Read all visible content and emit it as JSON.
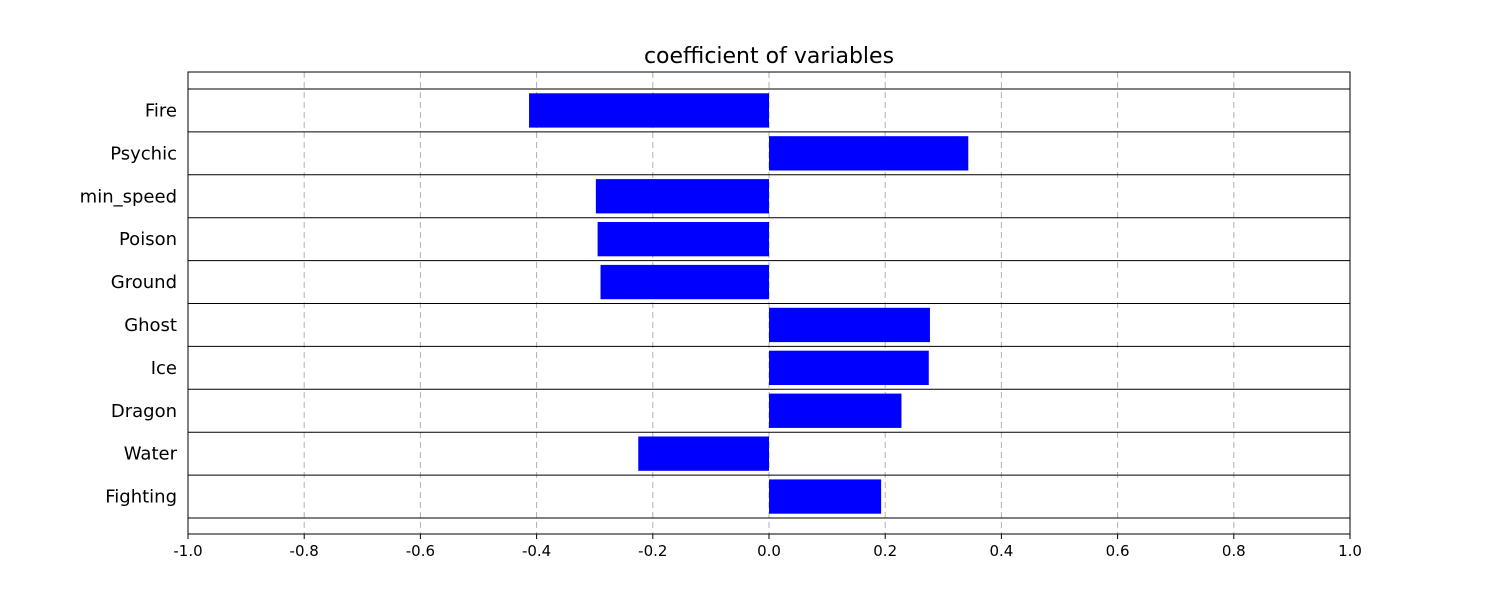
{
  "chart_data": {
    "type": "bar",
    "orientation": "horizontal",
    "title": "coefficient of variables",
    "xlabel": "",
    "ylabel": "",
    "xlim": [
      -1.0,
      1.0
    ],
    "grid": {
      "x": true,
      "style": "dashed",
      "color": "#b0b0b0"
    },
    "bar_color": "#0000ff",
    "categories": [
      "Fire",
      "Psychic",
      "min_speed",
      "Poison",
      "Ground",
      "Ghost",
      "Ice",
      "Dragon",
      "Water",
      "Fighting"
    ],
    "values": [
      -0.413,
      0.343,
      -0.298,
      -0.295,
      -0.29,
      0.277,
      0.275,
      0.228,
      -0.225,
      0.193
    ],
    "x_ticks": [
      -1.0,
      -0.8,
      -0.6,
      -0.4,
      -0.2,
      0.0,
      0.2,
      0.4,
      0.6,
      0.8,
      1.0
    ],
    "x_tick_labels": [
      "-1.0",
      "-0.8",
      "-0.6",
      "-0.4",
      "-0.2",
      "0.0",
      "0.2",
      "0.4",
      "0.6",
      "0.8",
      "1.0"
    ]
  }
}
